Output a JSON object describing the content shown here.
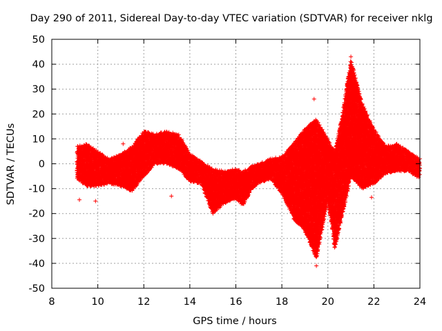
{
  "chart_data": {
    "type": "scatter",
    "title": "Day 290 of 2011, Sidereal Day-to-day VTEC variation (SDTVAR) for receiver nklg",
    "xlabel": "GPS time / hours",
    "ylabel": "SDTVAR / TECUs",
    "xlim": [
      8,
      24
    ],
    "ylim": [
      -50,
      50
    ],
    "grid": true,
    "marker": "+",
    "color": "#ff0000",
    "x_ticks": [
      "8",
      "10",
      "12",
      "14",
      "16",
      "18",
      "20",
      "22",
      "24"
    ],
    "y_ticks": [
      "50",
      "40",
      "30",
      "20",
      "10",
      "0",
      "-10",
      "-20",
      "-30",
      "-40",
      "-50"
    ],
    "series": [
      {
        "name": "SDTVAR",
        "envelope": [
          {
            "x": 9.1,
            "low": -6,
            "high": 7
          },
          {
            "x": 9.5,
            "low": -9,
            "high": 8
          },
          {
            "x": 10.0,
            "low": -9,
            "high": 5
          },
          {
            "x": 10.5,
            "low": -8,
            "high": 2
          },
          {
            "x": 11.0,
            "low": -9,
            "high": 4
          },
          {
            "x": 11.5,
            "low": -11,
            "high": 7
          },
          {
            "x": 12.0,
            "low": -5,
            "high": 13
          },
          {
            "x": 12.5,
            "low": 0,
            "high": 12
          },
          {
            "x": 13.0,
            "low": 0,
            "high": 13
          },
          {
            "x": 13.5,
            "low": -2,
            "high": 12
          },
          {
            "x": 14.0,
            "low": -7,
            "high": 4
          },
          {
            "x": 14.5,
            "low": -8,
            "high": 1
          },
          {
            "x": 15.0,
            "low": -20,
            "high": -2
          },
          {
            "x": 15.5,
            "low": -16,
            "high": -3
          },
          {
            "x": 16.0,
            "low": -14,
            "high": -2
          },
          {
            "x": 16.3,
            "low": -17,
            "high": -3
          },
          {
            "x": 16.7,
            "low": -10,
            "high": -1
          },
          {
            "x": 17.0,
            "low": -8,
            "high": 0
          },
          {
            "x": 17.5,
            "low": -6,
            "high": 2
          },
          {
            "x": 18.0,
            "low": -12,
            "high": 3
          },
          {
            "x": 18.5,
            "low": -22,
            "high": 8
          },
          {
            "x": 19.0,
            "low": -27,
            "high": 14
          },
          {
            "x": 19.5,
            "low": -38,
            "high": 18
          },
          {
            "x": 20.0,
            "low": -15,
            "high": 10
          },
          {
            "x": 20.3,
            "low": -34,
            "high": 5
          },
          {
            "x": 20.6,
            "low": -22,
            "high": 18
          },
          {
            "x": 21.0,
            "low": -5,
            "high": 42
          },
          {
            "x": 21.5,
            "low": -10,
            "high": 24
          },
          {
            "x": 22.0,
            "low": -8,
            "high": 14
          },
          {
            "x": 22.5,
            "low": -4,
            "high": 7
          },
          {
            "x": 23.0,
            "low": -3,
            "high": 8
          },
          {
            "x": 23.5,
            "low": -3,
            "high": 5
          },
          {
            "x": 24.0,
            "low": -6,
            "high": 2
          }
        ]
      }
    ],
    "annotations": [
      {
        "x": 9.2,
        "y": -14.5
      },
      {
        "x": 9.9,
        "y": -15
      },
      {
        "x": 21.0,
        "y": 43
      },
      {
        "x": 19.5,
        "y": -41
      },
      {
        "x": 19.4,
        "y": 26
      },
      {
        "x": 13.2,
        "y": -13
      },
      {
        "x": 11.1,
        "y": 8
      },
      {
        "x": 21.9,
        "y": -13.5
      }
    ]
  }
}
